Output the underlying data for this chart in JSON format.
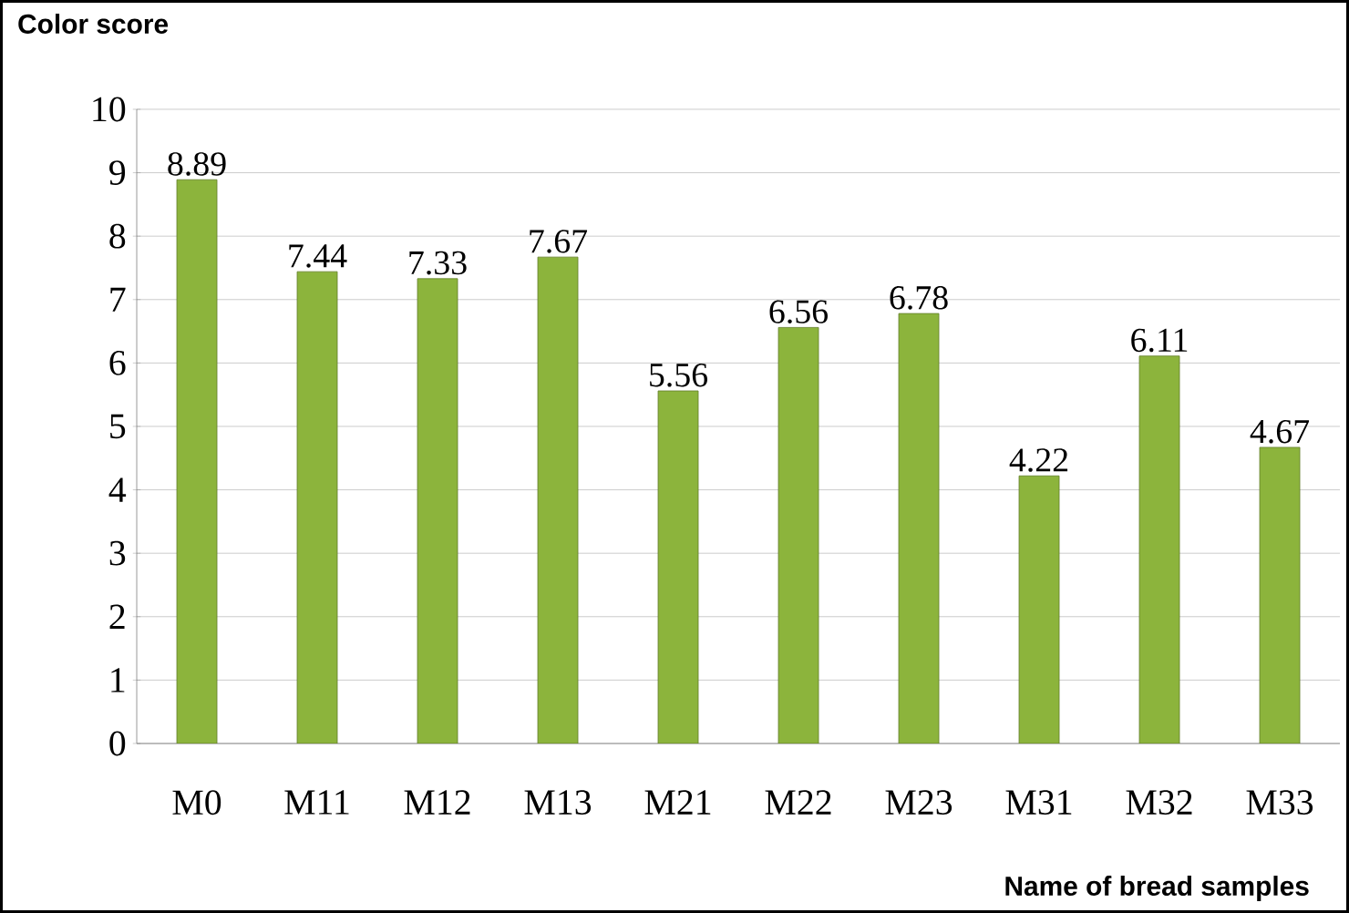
{
  "chart_data": {
    "type": "bar",
    "ylabel": "Color score",
    "xlabel": "Name of bread samples",
    "categories": [
      "M0",
      "M11",
      "M12",
      "M13",
      "M21",
      "M22",
      "M23",
      "M31",
      "M32",
      "M33"
    ],
    "values": [
      8.89,
      7.44,
      7.33,
      7.67,
      5.56,
      6.56,
      6.78,
      4.22,
      6.11,
      4.67
    ],
    "color": "#8cb43c",
    "ylim": [
      0,
      10
    ],
    "yticks": [
      0,
      1,
      2,
      3,
      4,
      5,
      6,
      7,
      8,
      9,
      10
    ],
    "grid": "y",
    "data_labels": true
  }
}
